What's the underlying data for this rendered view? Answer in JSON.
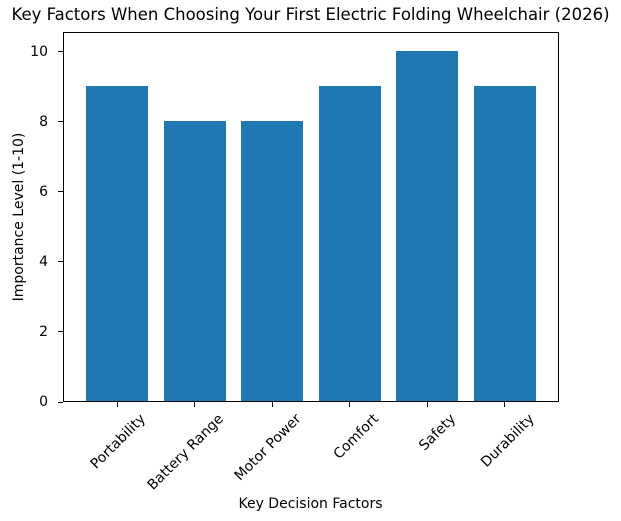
{
  "chart_data": {
    "type": "bar",
    "title": "Key Factors When Choosing Your First Electric Folding Wheelchair (2026)",
    "xlabel": "Key Decision Factors",
    "ylabel": "Importance Level (1-10)",
    "categories": [
      "Portability",
      "Battery Range",
      "Motor Power",
      "Comfort",
      "Safety",
      "Durability"
    ],
    "values": [
      9,
      8,
      8,
      9,
      10,
      9
    ],
    "yticks": [
      0,
      2,
      4,
      6,
      8,
      10
    ],
    "ylim": [
      0,
      10.5
    ],
    "xlim": [
      -0.69,
      5.69
    ],
    "bar_width_fraction": 0.8,
    "bar_color": "#1f77b4",
    "spine_color": "#000000",
    "text_color": "#000000",
    "background_color": "#ffffff",
    "grid": false,
    "legend": false,
    "xtick_label_rotation_deg": 45
  }
}
